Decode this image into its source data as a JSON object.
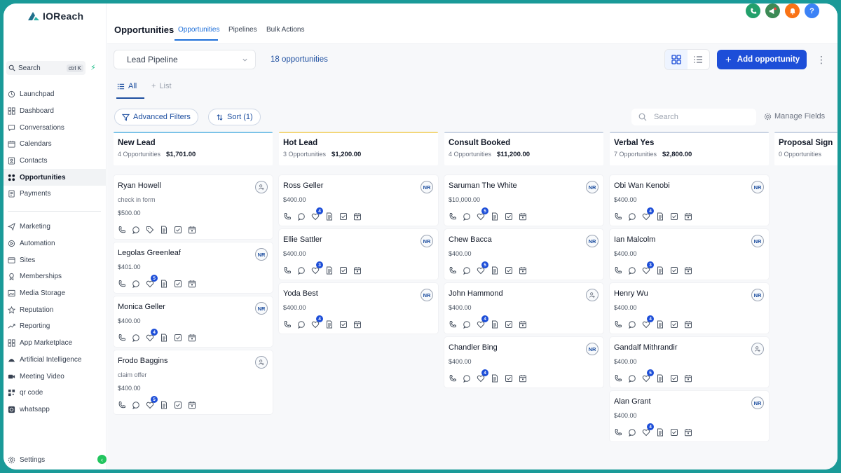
{
  "app": {
    "name": "IOReach"
  },
  "sidebar": {
    "search": {
      "label": "Search",
      "shortcut": "ctrl K"
    },
    "group1": [
      {
        "label": "Launchpad",
        "icon": "launchpad-icon"
      },
      {
        "label": "Dashboard",
        "icon": "dashboard-icon"
      },
      {
        "label": "Conversations",
        "icon": "chat-icon"
      },
      {
        "label": "Calendars",
        "icon": "calendar-icon"
      },
      {
        "label": "Contacts",
        "icon": "contacts-icon"
      },
      {
        "label": "Opportunities",
        "icon": "opportunities-icon",
        "active": true
      },
      {
        "label": "Payments",
        "icon": "payments-icon"
      }
    ],
    "group2": [
      {
        "label": "Marketing",
        "icon": "send-icon"
      },
      {
        "label": "Automation",
        "icon": "automation-icon"
      },
      {
        "label": "Sites",
        "icon": "sites-icon"
      },
      {
        "label": "Memberships",
        "icon": "memberships-icon"
      },
      {
        "label": "Media Storage",
        "icon": "media-icon"
      },
      {
        "label": "Reputation",
        "icon": "star-icon"
      },
      {
        "label": "Reporting",
        "icon": "trend-icon"
      },
      {
        "label": "App Marketplace",
        "icon": "grid-icon"
      },
      {
        "label": "Artificial Intelligence",
        "icon": "ai-icon"
      },
      {
        "label": "Meeting Video",
        "icon": "video-icon"
      },
      {
        "label": "qr code",
        "icon": "qr-icon"
      },
      {
        "label": "whatsapp",
        "icon": "whatsapp-icon"
      }
    ],
    "settings": "Settings"
  },
  "header": {
    "title": "Opportunities",
    "tabs": [
      "Opportunities",
      "Pipelines",
      "Bulk Actions"
    ],
    "active_tab": "Opportunities"
  },
  "toolbar": {
    "pipeline": "Lead Pipeline",
    "count": "18 opportunities",
    "add_label": "Add opportunity",
    "views": [
      "All",
      "List"
    ],
    "advanced_filters": "Advanced Filters",
    "sort": "Sort (1)",
    "search_placeholder": "Search",
    "manage_fields": "Manage Fields"
  },
  "colors": {
    "accent": "#1d4ed8",
    "link": "#1e4fa0",
    "call_green": "#22a06b",
    "notify_orange": "#f97316",
    "help_blue": "#3b82f6"
  },
  "columns": [
    {
      "title": "New Lead",
      "count": "4 Opportunities",
      "amount": "$1,701.00",
      "accent": "#7cc3e8",
      "cards": [
        {
          "name": "Ryan Howell",
          "sub": "check in form",
          "amount": "$500.00",
          "avatar": "",
          "badge": ""
        },
        {
          "name": "Legolas Greenleaf",
          "sub": "",
          "amount": "$401.00",
          "avatar": "NR",
          "badge": "5"
        },
        {
          "name": "Monica Geller",
          "sub": "",
          "amount": "$400.00",
          "avatar": "NR",
          "badge": "4"
        },
        {
          "name": "Frodo Baggins",
          "sub": "claim offer",
          "amount": "$400.00",
          "avatar": "",
          "badge": "5"
        }
      ]
    },
    {
      "title": "Hot Lead",
      "count": "3 Opportunities",
      "amount": "$1,200.00",
      "accent": "#f3d77a",
      "cards": [
        {
          "name": "Ross Geller",
          "sub": "",
          "amount": "$400.00",
          "avatar": "NR",
          "badge": "4"
        },
        {
          "name": "Ellie Sattler",
          "sub": "",
          "amount": "$400.00",
          "avatar": "NR",
          "badge": "3"
        },
        {
          "name": "Yoda Best",
          "sub": "",
          "amount": "$400.00",
          "avatar": "NR",
          "badge": "4"
        }
      ]
    },
    {
      "title": "Consult Booked",
      "count": "4 Opportunities",
      "amount": "$11,200.00",
      "accent": "#c9d3e3",
      "cards": [
        {
          "name": "Saruman The White",
          "sub": "",
          "amount": "$10,000.00",
          "avatar": "NR",
          "badge": "5"
        },
        {
          "name": "Chew Bacca",
          "sub": "",
          "amount": "$400.00",
          "avatar": "NR",
          "badge": "5"
        },
        {
          "name": "John Hammond",
          "sub": "",
          "amount": "$400.00",
          "avatar": "",
          "badge": "4"
        },
        {
          "name": "Chandler Bing",
          "sub": "",
          "amount": "$400.00",
          "avatar": "NR",
          "badge": "4"
        }
      ]
    },
    {
      "title": "Verbal Yes",
      "count": "7 Opportunities",
      "amount": "$2,800.00",
      "accent": "#c9d3e3",
      "cards": [
        {
          "name": "Obi Wan Kenobi",
          "sub": "",
          "amount": "$400.00",
          "avatar": "NR",
          "badge": "4"
        },
        {
          "name": "Ian Malcolm",
          "sub": "",
          "amount": "$400.00",
          "avatar": "NR",
          "badge": "3"
        },
        {
          "name": "Henry Wu",
          "sub": "",
          "amount": "$400.00",
          "avatar": "NR",
          "badge": "4"
        },
        {
          "name": "Gandalf Mithrandir",
          "sub": "",
          "amount": "$400.00",
          "avatar": "",
          "badge": "5"
        },
        {
          "name": "Alan Grant",
          "sub": "",
          "amount": "$400.00",
          "avatar": "NR",
          "badge": "4"
        }
      ]
    },
    {
      "title": "Proposal Sign",
      "count": "0 Opportunities",
      "amount": "",
      "accent": "#c9d3e3",
      "cards": []
    }
  ]
}
